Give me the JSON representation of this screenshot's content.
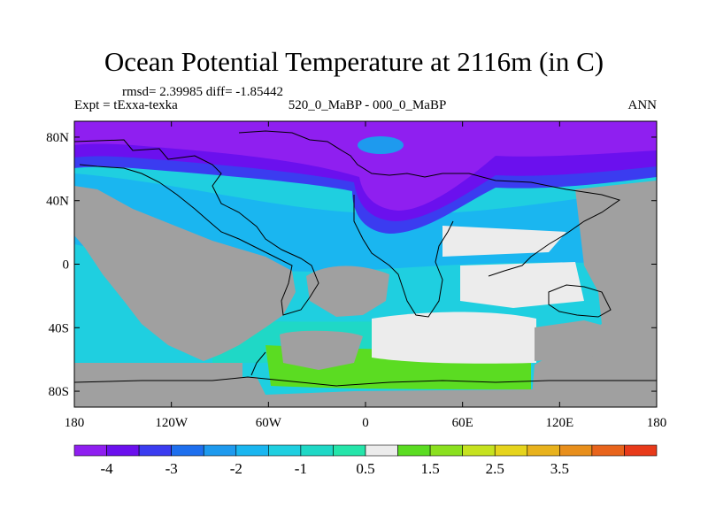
{
  "title": "Ocean Potential Temperature at 2116m (in C)",
  "stats": "rmsd= 2.39985 diff= -1.85442",
  "experiment": "Expt = tExxa-texka",
  "comparison": "520_0_MaBP - 000_0_MaBP",
  "season": "ANN",
  "chart_data": {
    "type": "heatmap",
    "xticks": [
      {
        "value": -180,
        "label": "180"
      },
      {
        "value": -120,
        "label": "120W"
      },
      {
        "value": -60,
        "label": "60W"
      },
      {
        "value": 0,
        "label": "0"
      },
      {
        "value": 60,
        "label": "60E"
      },
      {
        "value": 120,
        "label": "120E"
      },
      {
        "value": 180,
        "label": "180"
      }
    ],
    "yticks": [
      {
        "value": 80,
        "label": "80N"
      },
      {
        "value": 40,
        "label": "40N"
      },
      {
        "value": 0,
        "label": "0"
      },
      {
        "value": -40,
        "label": "40S"
      },
      {
        "value": -80,
        "label": "80S"
      }
    ],
    "xlim": [
      -180,
      180
    ],
    "ylim": [
      -90,
      90
    ],
    "colorbar": {
      "colors": [
        "#8f1ff0",
        "#6b10ee",
        "#3b3cf0",
        "#1e6fee",
        "#1e9aee",
        "#1ab6f0",
        "#1fcfe0",
        "#1fd8c6",
        "#25e5aa",
        "#ececec",
        "#5bdc22",
        "#8be01f",
        "#c6e21f",
        "#e6d41d",
        "#e8b21d",
        "#e88f1c",
        "#e8641c",
        "#e83a1a"
      ],
      "labels": [
        {
          "boundary": 1,
          "text": "-4"
        },
        {
          "boundary": 3,
          "text": "-3"
        },
        {
          "boundary": 5,
          "text": "-2"
        },
        {
          "boundary": 7,
          "text": "-1"
        },
        {
          "boundary": 9,
          "text": "0.5"
        },
        {
          "boundary": 11,
          "text": "1.5"
        },
        {
          "boundary": 13,
          "text": "2.5"
        },
        {
          "boundary": 15,
          "text": "3.5"
        }
      ]
    }
  }
}
